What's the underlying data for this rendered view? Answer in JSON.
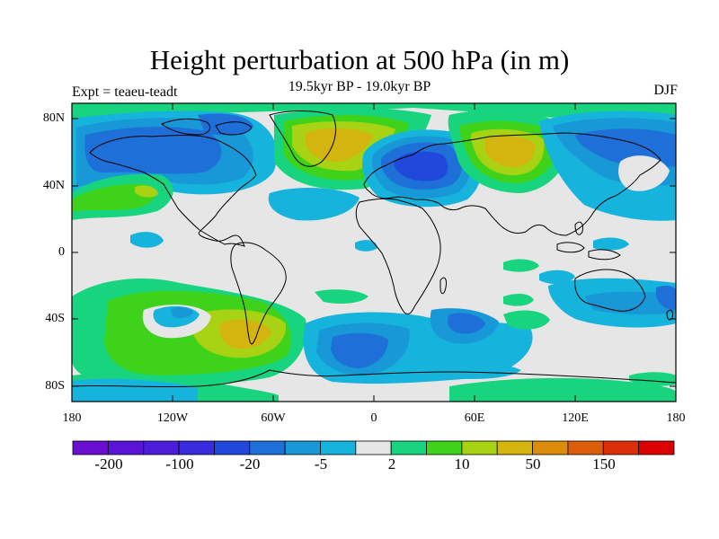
{
  "title": "Height perturbation at 500 hPa (in m)",
  "subtitle": "19.5kyr BP - 19.0kyr BP",
  "experiment": "Expt = teaeu-teadt",
  "season": "DJF",
  "lat_labels": [
    "80N",
    "40N",
    "0",
    "40S",
    "80S"
  ],
  "lon_labels": [
    "180",
    "120W",
    "60W",
    "0",
    "60E",
    "120E",
    "180"
  ],
  "colorbar": {
    "labels": [
      "-200",
      "-100",
      "-20",
      "-5",
      "2",
      "10",
      "50",
      "150"
    ],
    "colors": [
      "#6a0fd2",
      "#5a14d8",
      "#4b1edc",
      "#3a2bdf",
      "#2048db",
      "#1e6fd8",
      "#1898d6",
      "#16b4dc",
      "#e6e6e6",
      "#18d47e",
      "#3ed21a",
      "#a8d214",
      "#d4b40e",
      "#dc8c0a",
      "#dc5e0a",
      "#dc2e08",
      "#dc0000"
    ]
  },
  "colors": {
    "background": "#e6e6e6",
    "coast": "#000000"
  }
}
